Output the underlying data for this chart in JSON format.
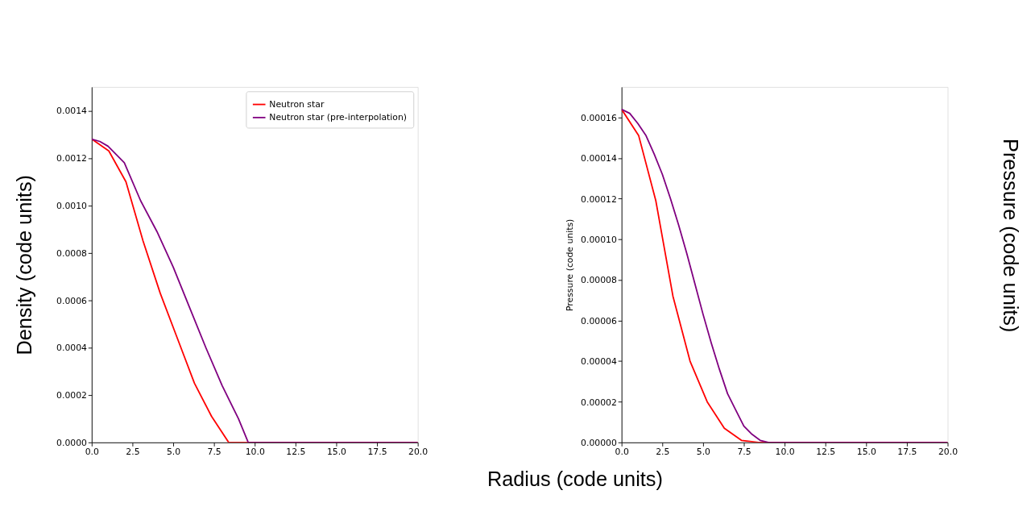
{
  "chart_data": [
    {
      "type": "line",
      "ylabel": "Density (code units)",
      "xlim": [
        0,
        20
      ],
      "xticks": [
        {
          "value": 0,
          "label": "0.0"
        },
        {
          "value": 2.5,
          "label": "2.5"
        },
        {
          "value": 5,
          "label": "5.0"
        },
        {
          "value": 7.5,
          "label": "7.5"
        },
        {
          "value": 10,
          "label": "10.0"
        },
        {
          "value": 12.5,
          "label": "12.5"
        },
        {
          "value": 15,
          "label": "15.0"
        },
        {
          "value": 17.5,
          "label": "17.5"
        },
        {
          "value": 20,
          "label": "20.0"
        }
      ],
      "ylim": [
        0,
        0.0015
      ],
      "yticks": [
        {
          "value": 0,
          "label": "0.0000"
        },
        {
          "value": 0.0002,
          "label": "0.0002"
        },
        {
          "value": 0.0004,
          "label": "0.0004"
        },
        {
          "value": 0.0006,
          "label": "0.0006"
        },
        {
          "value": 0.0008,
          "label": "0.0008"
        },
        {
          "value": 0.001,
          "label": "0.0010"
        },
        {
          "value": 0.0012,
          "label": "0.0012"
        },
        {
          "value": 0.0014,
          "label": "0.0014"
        }
      ],
      "legend": "top right",
      "grid": false,
      "series": [
        {
          "name": "Neutron star",
          "color": "#ff0000",
          "x": [
            0,
            1.05,
            2.1,
            3.15,
            4.2,
            5.25,
            6.3,
            7.35,
            8.4,
            20
          ],
          "values": [
            0.00128,
            0.00123,
            0.0011,
            0.00085,
            0.00063,
            0.00044,
            0.00025,
            0.00011,
            0,
            0
          ]
        },
        {
          "name": "Neutron star (pre-interpolation)",
          "color": "#800080",
          "x": [
            0,
            0.5,
            1,
            2,
            3,
            4,
            5,
            6,
            7,
            8,
            9,
            9.6,
            20
          ],
          "values": [
            0.00128,
            0.00127,
            0.00125,
            0.00118,
            0.00102,
            0.00089,
            0.00074,
            0.00057,
            0.0004,
            0.00024,
            0.0001,
            0,
            0
          ]
        }
      ]
    },
    {
      "type": "line",
      "ylabel": "Pressure (code units)",
      "xlim": [
        0,
        20
      ],
      "xticks": [
        {
          "value": 0,
          "label": "0.0"
        },
        {
          "value": 2.5,
          "label": "2.5"
        },
        {
          "value": 5,
          "label": "5.0"
        },
        {
          "value": 7.5,
          "label": "7.5"
        },
        {
          "value": 10,
          "label": "10.0"
        },
        {
          "value": 12.5,
          "label": "12.5"
        },
        {
          "value": 15,
          "label": "15.0"
        },
        {
          "value": 17.5,
          "label": "17.5"
        },
        {
          "value": 20,
          "label": "20.0"
        }
      ],
      "ylim": [
        0,
        0.000175
      ],
      "yticks": [
        {
          "value": 0,
          "label": "0.00000"
        },
        {
          "value": 2e-05,
          "label": "0.00002"
        },
        {
          "value": 4e-05,
          "label": "0.00004"
        },
        {
          "value": 6e-05,
          "label": "0.00006"
        },
        {
          "value": 8e-05,
          "label": "0.00008"
        },
        {
          "value": 0.0001,
          "label": "0.00010"
        },
        {
          "value": 0.00012,
          "label": "0.00012"
        },
        {
          "value": 0.00014,
          "label": "0.00014"
        },
        {
          "value": 0.00016,
          "label": "0.00016"
        }
      ],
      "grid": false,
      "annotations": [
        "Pressure (code units)",
        "Radius (code units)"
      ],
      "series": [
        {
          "color": "#ff0000",
          "x": [
            0,
            1.05,
            2.1,
            3.15,
            4.2,
            5.25,
            6.3,
            7.35,
            8.4,
            20
          ],
          "values": [
            0.000164,
            0.000151,
            0.000119,
            7.2e-05,
            4e-05,
            2e-05,
            7e-06,
            1e-06,
            0,
            0
          ]
        },
        {
          "color": "#800080",
          "x": [
            0,
            0.5,
            1,
            1.5,
            2,
            2.5,
            3,
            3.5,
            4,
            4.5,
            5,
            5.5,
            6,
            6.5,
            7,
            7.5,
            8,
            8.5,
            9,
            20
          ],
          "values": [
            0.000164,
            0.000162,
            0.000157,
            0.000151,
            0.000142,
            0.000132,
            0.00012,
            0.000107,
            9.3e-05,
            7.8e-05,
            6.3e-05,
            4.9e-05,
            3.6e-05,
            2.4e-05,
            1.6e-05,
            8e-06,
            4e-06,
            1e-06,
            0,
            0
          ]
        }
      ]
    }
  ]
}
